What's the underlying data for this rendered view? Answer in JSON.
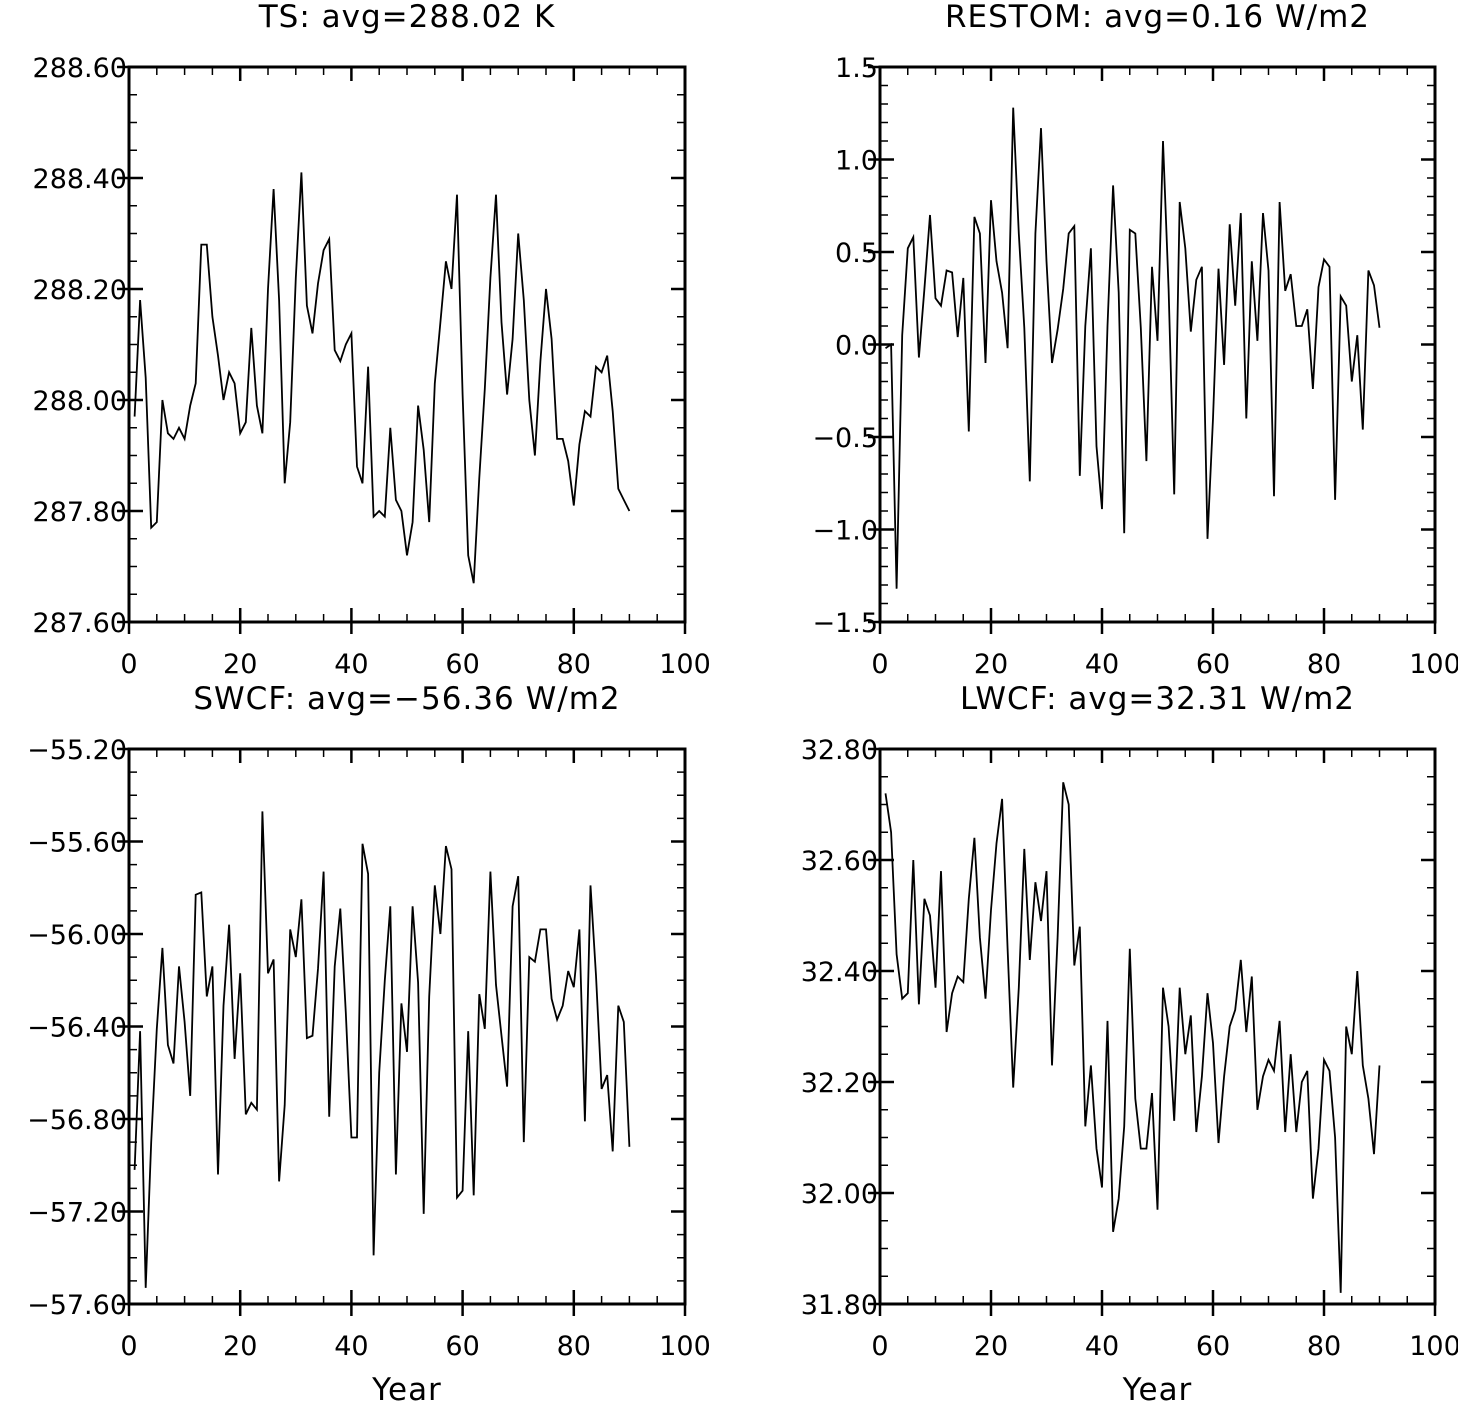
{
  "chart_data": [
    {
      "type": "line",
      "title": "TS: avg=288.02 K",
      "xlabel": "",
      "ylabel": "",
      "xlim": [
        0,
        100
      ],
      "ylim": [
        287.6,
        288.6
      ],
      "x_ticks": [
        0,
        20,
        40,
        60,
        80,
        100
      ],
      "x_tick_labels": [
        "0",
        "20",
        "40",
        "60",
        "80",
        "100"
      ],
      "y_ticks": [
        287.6,
        287.8,
        288.0,
        288.2,
        288.4,
        288.6
      ],
      "y_tick_labels": [
        "287.60",
        "287.80",
        "288.00",
        "288.20",
        "288.40",
        "288.60"
      ],
      "y_minor_step": 0.05,
      "grid": false,
      "x": [
        1,
        2,
        3,
        4,
        5,
        6,
        7,
        8,
        9,
        10,
        11,
        12,
        13,
        14,
        15,
        16,
        17,
        18,
        19,
        20,
        21,
        22,
        23,
        24,
        25,
        26,
        27,
        28,
        29,
        30,
        31,
        32,
        33,
        34,
        35,
        36,
        37,
        38,
        39,
        40,
        41,
        42,
        43,
        44,
        45,
        46,
        47,
        48,
        49,
        50,
        51,
        52,
        53,
        54,
        55,
        56,
        57,
        58,
        59,
        60,
        61,
        62,
        63,
        64,
        65,
        66,
        67,
        68,
        69,
        70,
        71,
        72,
        73,
        74,
        75,
        76,
        77,
        78,
        79,
        80,
        81,
        82,
        83,
        84,
        85,
        86,
        87,
        88,
        89,
        90
      ],
      "values": [
        287.97,
        288.18,
        288.04,
        287.77,
        287.78,
        288.0,
        287.94,
        287.93,
        287.95,
        287.93,
        287.99,
        288.03,
        288.28,
        288.28,
        288.15,
        288.08,
        288.0,
        288.05,
        288.03,
        287.94,
        287.96,
        288.13,
        287.99,
        287.94,
        288.2,
        288.38,
        288.18,
        287.85,
        287.96,
        288.22,
        288.41,
        288.17,
        288.12,
        288.21,
        288.27,
        288.29,
        288.09,
        288.07,
        288.1,
        288.12,
        287.88,
        287.85,
        288.06,
        287.79,
        287.8,
        287.79,
        287.95,
        287.82,
        287.8,
        287.72,
        287.78,
        287.99,
        287.91,
        287.78,
        288.03,
        288.14,
        288.25,
        288.2,
        288.37,
        288.01,
        287.72,
        287.67,
        287.86,
        288.02,
        288.22,
        288.37,
        288.14,
        288.01,
        288.11,
        288.3,
        288.18,
        288.0,
        287.9,
        288.07,
        288.2,
        288.11,
        287.93,
        287.93,
        287.89,
        287.81,
        287.92,
        287.98,
        287.97,
        288.06,
        288.05,
        288.08,
        287.98,
        287.84,
        287.82,
        287.8
      ]
    },
    {
      "type": "line",
      "title": "RESTOM: avg=0.16 W/m2",
      "xlabel": "",
      "ylabel": "",
      "xlim": [
        0,
        100
      ],
      "ylim": [
        -1.5,
        1.5
      ],
      "x_ticks": [
        0,
        20,
        40,
        60,
        80,
        100
      ],
      "x_tick_labels": [
        "0",
        "20",
        "40",
        "60",
        "80",
        "100"
      ],
      "y_ticks": [
        -1.5,
        -1.0,
        -0.5,
        0.0,
        0.5,
        1.0,
        1.5
      ],
      "y_tick_labels": [
        "−1.5",
        "−1.0",
        "−0.5",
        "0.0",
        "0.5",
        "1.0",
        "1.5"
      ],
      "y_minor_step": 0.1,
      "grid": false,
      "x": [
        1,
        2,
        3,
        4,
        5,
        6,
        7,
        8,
        9,
        10,
        11,
        12,
        13,
        14,
        15,
        16,
        17,
        18,
        19,
        20,
        21,
        22,
        23,
        24,
        25,
        26,
        27,
        28,
        29,
        30,
        31,
        32,
        33,
        34,
        35,
        36,
        37,
        38,
        39,
        40,
        41,
        42,
        43,
        44,
        45,
        46,
        47,
        48,
        49,
        50,
        51,
        52,
        53,
        54,
        55,
        56,
        57,
        58,
        59,
        60,
        61,
        62,
        63,
        64,
        65,
        66,
        67,
        68,
        69,
        70,
        71,
        72,
        73,
        74,
        75,
        76,
        77,
        78,
        79,
        80,
        81,
        82,
        83,
        84,
        85,
        86,
        87,
        88,
        89,
        90
      ],
      "values": [
        -0.02,
        0.0,
        -1.32,
        0.05,
        0.52,
        0.58,
        -0.07,
        0.3,
        0.7,
        0.25,
        0.21,
        0.4,
        0.39,
        0.04,
        0.36,
        -0.47,
        0.69,
        0.6,
        -0.1,
        0.78,
        0.45,
        0.28,
        -0.02,
        1.28,
        0.6,
        0.09,
        -0.74,
        0.6,
        1.17,
        0.45,
        -0.1,
        0.08,
        0.3,
        0.6,
        0.64,
        -0.71,
        0.1,
        0.52,
        -0.55,
        -0.89,
        0.1,
        0.86,
        0.28,
        -1.02,
        0.62,
        0.6,
        0.09,
        -0.63,
        0.42,
        0.02,
        1.1,
        0.3,
        -0.81,
        0.77,
        0.52,
        0.07,
        0.35,
        0.42,
        -1.05,
        -0.4,
        0.41,
        -0.11,
        0.65,
        0.21,
        0.71,
        -0.4,
        0.45,
        0.02,
        0.71,
        0.4,
        -0.82,
        0.77,
        0.29,
        0.38,
        0.1,
        0.1,
        0.19,
        -0.24,
        0.31,
        0.46,
        0.42,
        -0.84,
        0.26,
        0.21,
        -0.2,
        0.05,
        -0.46,
        0.4,
        0.32,
        0.09
      ]
    },
    {
      "type": "line",
      "title": "SWCF: avg=−56.36 W/m2",
      "xlabel": "Year",
      "ylabel": "",
      "xlim": [
        0,
        100
      ],
      "ylim": [
        -57.6,
        -55.2
      ],
      "x_ticks": [
        0,
        20,
        40,
        60,
        80,
        100
      ],
      "x_tick_labels": [
        "0",
        "20",
        "40",
        "60",
        "80",
        "100"
      ],
      "y_ticks": [
        -57.6,
        -57.2,
        -56.8,
        -56.4,
        -56.0,
        -55.6,
        -55.2
      ],
      "y_tick_labels": [
        "−57.60",
        "−57.20",
        "−56.80",
        "−56.40",
        "−56.00",
        "−55.60",
        "−55.20"
      ],
      "y_minor_step": 0.1,
      "grid": false,
      "x": [
        1,
        2,
        3,
        4,
        5,
        6,
        7,
        8,
        9,
        10,
        11,
        12,
        13,
        14,
        15,
        16,
        17,
        18,
        19,
        20,
        21,
        22,
        23,
        24,
        25,
        26,
        27,
        28,
        29,
        30,
        31,
        32,
        33,
        34,
        35,
        36,
        37,
        38,
        39,
        40,
        41,
        42,
        43,
        44,
        45,
        46,
        47,
        48,
        49,
        50,
        51,
        52,
        53,
        54,
        55,
        56,
        57,
        58,
        59,
        60,
        61,
        62,
        63,
        64,
        65,
        66,
        67,
        68,
        69,
        70,
        71,
        72,
        73,
        74,
        75,
        76,
        77,
        78,
        79,
        80,
        81,
        82,
        83,
        84,
        85,
        86,
        87,
        88,
        89,
        90
      ],
      "values": [
        -57.02,
        -56.42,
        -57.53,
        -56.9,
        -56.41,
        -56.06,
        -56.48,
        -56.56,
        -56.14,
        -56.38,
        -56.7,
        -55.83,
        -55.82,
        -56.27,
        -56.14,
        -57.04,
        -56.31,
        -55.96,
        -56.54,
        -56.17,
        -56.78,
        -56.73,
        -56.76,
        -55.47,
        -56.17,
        -56.11,
        -57.07,
        -56.74,
        -55.98,
        -56.1,
        -55.85,
        -56.45,
        -56.44,
        -56.15,
        -55.73,
        -56.79,
        -56.14,
        -55.89,
        -56.34,
        -56.88,
        -56.88,
        -55.61,
        -55.74,
        -57.39,
        -56.6,
        -56.2,
        -55.88,
        -57.04,
        -56.3,
        -56.51,
        -55.88,
        -56.21,
        -57.21,
        -56.27,
        -55.79,
        -56.0,
        -55.62,
        -55.72,
        -57.14,
        -57.11,
        -56.42,
        -57.13,
        -56.26,
        -56.41,
        -55.73,
        -56.22,
        -56.44,
        -56.66,
        -55.88,
        -55.75,
        -56.9,
        -56.1,
        -56.12,
        -55.98,
        -55.98,
        -56.28,
        -56.37,
        -56.31,
        -56.16,
        -56.23,
        -55.98,
        -56.81,
        -55.79,
        -56.18,
        -56.67,
        -56.61,
        -56.94,
        -56.31,
        -56.38,
        -56.92
      ]
    },
    {
      "type": "line",
      "title": "LWCF: avg=32.31 W/m2",
      "xlabel": "Year",
      "ylabel": "",
      "xlim": [
        0,
        100
      ],
      "ylim": [
        31.8,
        32.8
      ],
      "x_ticks": [
        0,
        20,
        40,
        60,
        80,
        100
      ],
      "x_tick_labels": [
        "0",
        "20",
        "40",
        "60",
        "80",
        "100"
      ],
      "y_ticks": [
        31.8,
        32.0,
        32.2,
        32.4,
        32.6,
        32.8
      ],
      "y_tick_labels": [
        "31.80",
        "32.00",
        "32.20",
        "32.40",
        "32.60",
        "32.80"
      ],
      "y_minor_step": 0.05,
      "grid": false,
      "x": [
        1,
        2,
        3,
        4,
        5,
        6,
        7,
        8,
        9,
        10,
        11,
        12,
        13,
        14,
        15,
        16,
        17,
        18,
        19,
        20,
        21,
        22,
        23,
        24,
        25,
        26,
        27,
        28,
        29,
        30,
        31,
        32,
        33,
        34,
        35,
        36,
        37,
        38,
        39,
        40,
        41,
        42,
        43,
        44,
        45,
        46,
        47,
        48,
        49,
        50,
        51,
        52,
        53,
        54,
        55,
        56,
        57,
        58,
        59,
        60,
        61,
        62,
        63,
        64,
        65,
        66,
        67,
        68,
        69,
        70,
        71,
        72,
        73,
        74,
        75,
        76,
        77,
        78,
        79,
        80,
        81,
        82,
        83,
        84,
        85,
        86,
        87,
        88,
        89,
        90
      ],
      "values": [
        32.72,
        32.65,
        32.43,
        32.35,
        32.36,
        32.6,
        32.34,
        32.53,
        32.5,
        32.37,
        32.58,
        32.29,
        32.36,
        32.39,
        32.38,
        32.53,
        32.64,
        32.46,
        32.35,
        32.51,
        32.63,
        32.71,
        32.44,
        32.19,
        32.37,
        32.62,
        32.42,
        32.56,
        32.49,
        32.58,
        32.23,
        32.46,
        32.74,
        32.7,
        32.41,
        32.48,
        32.12,
        32.23,
        32.08,
        32.01,
        32.31,
        31.93,
        31.99,
        32.12,
        32.44,
        32.17,
        32.08,
        32.08,
        32.18,
        31.97,
        32.37,
        32.3,
        32.13,
        32.37,
        32.25,
        32.32,
        32.11,
        32.21,
        32.36,
        32.27,
        32.09,
        32.21,
        32.3,
        32.33,
        32.42,
        32.29,
        32.39,
        32.15,
        32.21,
        32.24,
        32.22,
        32.31,
        32.11,
        32.25,
        32.11,
        32.2,
        32.22,
        31.99,
        32.08,
        32.24,
        32.22,
        32.1,
        31.82,
        32.3,
        32.25,
        32.4,
        32.23,
        32.17,
        32.07,
        32.23
      ]
    }
  ]
}
